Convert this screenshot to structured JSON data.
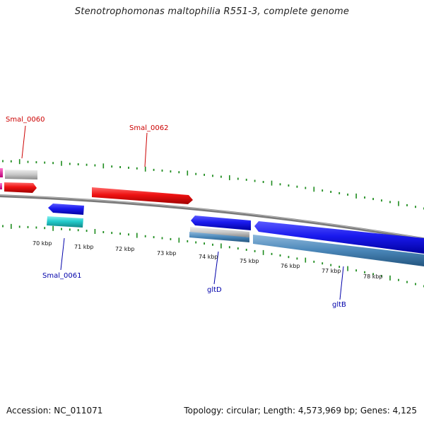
{
  "title": "Stenotrophomonas maltophilia R551-3, complete genome",
  "footer": {
    "accession": "Accession: NC_011071",
    "summary": "Topology: circular; Length: 4,573,969 bp; Genes: 4,125"
  },
  "colors": {
    "backbone": "#808080",
    "tick": "#1e8c1e",
    "forward_gene": "#ee1111",
    "reverse_gene": "#1a1aee",
    "rna_gene": "#22cccc",
    "pseudo_gene": "#c8c8c8",
    "cds_feature": "#4a86b8",
    "pink_feature": "#ee22aa",
    "forward_label": "#cc0000",
    "reverse_label": "#0000aa"
  },
  "kbp_labels": [
    "70 kbp",
    "71 kbp",
    "72 kbp",
    "73 kbp",
    "74 kbp",
    "75 kbp",
    "76 kbp",
    "77 kbp",
    "78 kbp"
  ],
  "gene_labels": {
    "top": [
      "Smal_0060",
      "Smal_0062"
    ],
    "bottom": [
      "Smal_0061",
      "gltD",
      "gltB"
    ]
  }
}
